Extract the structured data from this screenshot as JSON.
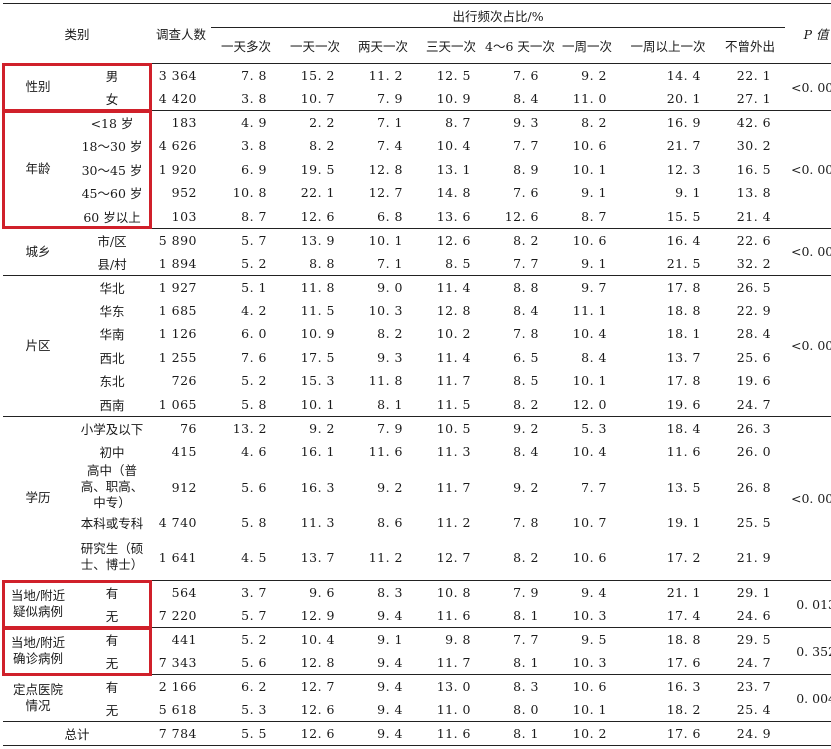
{
  "header": {
    "category": "类别",
    "respondents": "调查人数",
    "freq_group": "出行频次占比/%",
    "p_value": "P 值",
    "freq_cols": [
      "一天多次",
      "一天一次",
      "两天一次",
      "三天一次",
      "4～6 天一次",
      "一周一次",
      "一周以上一次",
      "不曾外出"
    ]
  },
  "groups": [
    {
      "name": "性别",
      "p": "<0. 001",
      "highlighted": true,
      "rows": [
        {
          "label": "男",
          "n": "3 364",
          "v": [
            "7. 8",
            "15. 2",
            "11. 2",
            "12. 5",
            "7. 6",
            "9. 2",
            "14. 4",
            "22. 1"
          ]
        },
        {
          "label": "女",
          "n": "4 420",
          "v": [
            "3. 8",
            "10. 7",
            "7. 9",
            "10. 9",
            "8. 4",
            "11. 0",
            "20. 1",
            "27. 1"
          ]
        }
      ]
    },
    {
      "name": "年龄",
      "p": "<0. 001",
      "highlighted": true,
      "rows": [
        {
          "label": "<18 岁",
          "n": "183",
          "v": [
            "4. 9",
            "2. 2",
            "7. 1",
            "8. 7",
            "9. 3",
            "8. 2",
            "16. 9",
            "42. 6"
          ]
        },
        {
          "label": "18～30 岁",
          "n": "4 626",
          "v": [
            "3. 8",
            "8. 2",
            "7. 4",
            "10. 4",
            "7. 7",
            "10. 6",
            "21. 7",
            "30. 2"
          ]
        },
        {
          "label": "30～45 岁",
          "n": "1 920",
          "v": [
            "6. 9",
            "19. 5",
            "12. 8",
            "13. 1",
            "8. 9",
            "10. 1",
            "12. 3",
            "16. 5"
          ]
        },
        {
          "label": "45～60 岁",
          "n": "952",
          "v": [
            "10. 8",
            "22. 1",
            "12. 7",
            "14. 8",
            "7. 6",
            "9. 1",
            "9. 1",
            "13. 8"
          ]
        },
        {
          "label": "60 岁以上",
          "n": "103",
          "v": [
            "8. 7",
            "12. 6",
            "6. 8",
            "13. 6",
            "12. 6",
            "8. 7",
            "15. 5",
            "21. 4"
          ]
        }
      ]
    },
    {
      "name": "城乡",
      "p": "<0. 001",
      "highlighted": false,
      "rows": [
        {
          "label": "市/区",
          "n": "5 890",
          "v": [
            "5. 7",
            "13. 9",
            "10. 1",
            "12. 6",
            "8. 2",
            "10. 6",
            "16. 4",
            "22. 6"
          ]
        },
        {
          "label": "县/村",
          "n": "1 894",
          "v": [
            "5. 2",
            "8. 8",
            "7. 1",
            "8. 5",
            "7. 7",
            "9. 1",
            "21. 5",
            "32. 2"
          ]
        }
      ]
    },
    {
      "name": "片区",
      "p": "<0. 001",
      "highlighted": false,
      "rows": [
        {
          "label": "华北",
          "n": "1 927",
          "v": [
            "5. 1",
            "11. 8",
            "9. 0",
            "11. 4",
            "8. 8",
            "9. 7",
            "17. 8",
            "26. 5"
          ]
        },
        {
          "label": "华东",
          "n": "1 685",
          "v": [
            "4. 2",
            "11. 5",
            "10. 3",
            "12. 8",
            "8. 4",
            "11. 1",
            "18. 8",
            "22. 9"
          ]
        },
        {
          "label": "华南",
          "n": "1 126",
          "v": [
            "6. 0",
            "10. 9",
            "8. 2",
            "10. 2",
            "7. 8",
            "10. 4",
            "18. 1",
            "28. 4"
          ]
        },
        {
          "label": "西北",
          "n": "1 255",
          "v": [
            "7. 6",
            "17. 5",
            "9. 3",
            "11. 4",
            "6. 5",
            "8. 4",
            "13. 7",
            "25. 6"
          ]
        },
        {
          "label": "东北",
          "n": "726",
          "v": [
            "5. 2",
            "15. 3",
            "11. 8",
            "11. 7",
            "8. 5",
            "10. 1",
            "17. 8",
            "19. 6"
          ]
        },
        {
          "label": "西南",
          "n": "1 065",
          "v": [
            "5. 8",
            "10. 1",
            "8. 1",
            "11. 5",
            "8. 2",
            "12. 0",
            "19. 6",
            "24. 7"
          ]
        }
      ]
    },
    {
      "name": "学历",
      "p": "<0. 001",
      "highlighted": false,
      "rows": [
        {
          "label": "小学及以下",
          "n": "76",
          "v": [
            "13. 2",
            "9. 2",
            "7. 9",
            "10. 5",
            "9. 2",
            "5. 3",
            "18. 4",
            "26. 3"
          ]
        },
        {
          "label": "初中",
          "n": "415",
          "v": [
            "4. 6",
            "16. 1",
            "11. 6",
            "11. 3",
            "8. 4",
            "10. 4",
            "11. 6",
            "26. 0"
          ]
        },
        {
          "label": "高中（普高、职高、中专）",
          "n": "912",
          "v": [
            "5. 6",
            "16. 3",
            "9. 2",
            "11. 7",
            "9. 2",
            "7. 7",
            "13. 5",
            "26. 8"
          ],
          "tall": true
        },
        {
          "label": "本科或专科",
          "n": "4 740",
          "v": [
            "5. 8",
            "11. 3",
            "8. 6",
            "11. 2",
            "7. 8",
            "10. 7",
            "19. 1",
            "25. 5"
          ]
        },
        {
          "label": "研究生（硕士、博士）",
          "n": "1 641",
          "v": [
            "4. 5",
            "13. 7",
            "11. 2",
            "12. 7",
            "8. 2",
            "10. 6",
            "17. 2",
            "21. 9"
          ],
          "tall": true
        }
      ]
    },
    {
      "name": "当地/附近疑似病例",
      "p": "0. 013",
      "highlighted": true,
      "rows": [
        {
          "label": "有",
          "n": "564",
          "v": [
            "3. 7",
            "9. 6",
            "8. 3",
            "10. 8",
            "7. 9",
            "9. 4",
            "21. 1",
            "29. 1"
          ]
        },
        {
          "label": "无",
          "n": "7 220",
          "v": [
            "5. 7",
            "12. 9",
            "9. 4",
            "11. 6",
            "8. 1",
            "10. 3",
            "17. 4",
            "24. 6"
          ]
        }
      ]
    },
    {
      "name": "当地/附近确诊病例",
      "p": "0. 352",
      "highlighted": true,
      "rows": [
        {
          "label": "有",
          "n": "441",
          "v": [
            "5. 2",
            "10. 4",
            "9. 1",
            "9. 8",
            "7. 7",
            "9. 5",
            "18. 8",
            "29. 5"
          ]
        },
        {
          "label": "无",
          "n": "7 343",
          "v": [
            "5. 6",
            "12. 8",
            "9. 4",
            "11. 7",
            "8. 1",
            "10. 3",
            "17. 6",
            "24. 7"
          ]
        }
      ]
    },
    {
      "name": "定点医院情况",
      "p": "0. 004",
      "highlighted": false,
      "rows": [
        {
          "label": "有",
          "n": "2 166",
          "v": [
            "6. 2",
            "12. 7",
            "9. 4",
            "13. 0",
            "8. 3",
            "10. 6",
            "16. 3",
            "23. 7"
          ]
        },
        {
          "label": "无",
          "n": "5 618",
          "v": [
            "5. 3",
            "12. 6",
            "9. 4",
            "11. 0",
            "8. 0",
            "10. 1",
            "18. 2",
            "25. 4"
          ]
        }
      ]
    }
  ],
  "total": {
    "label": "总计",
    "n": "7 784",
    "v": [
      "5. 5",
      "12. 6",
      "9. 4",
      "11. 6",
      "8. 1",
      "10. 2",
      "17. 6",
      "24. 9"
    ]
  },
  "highlight_color": "#d0202a"
}
